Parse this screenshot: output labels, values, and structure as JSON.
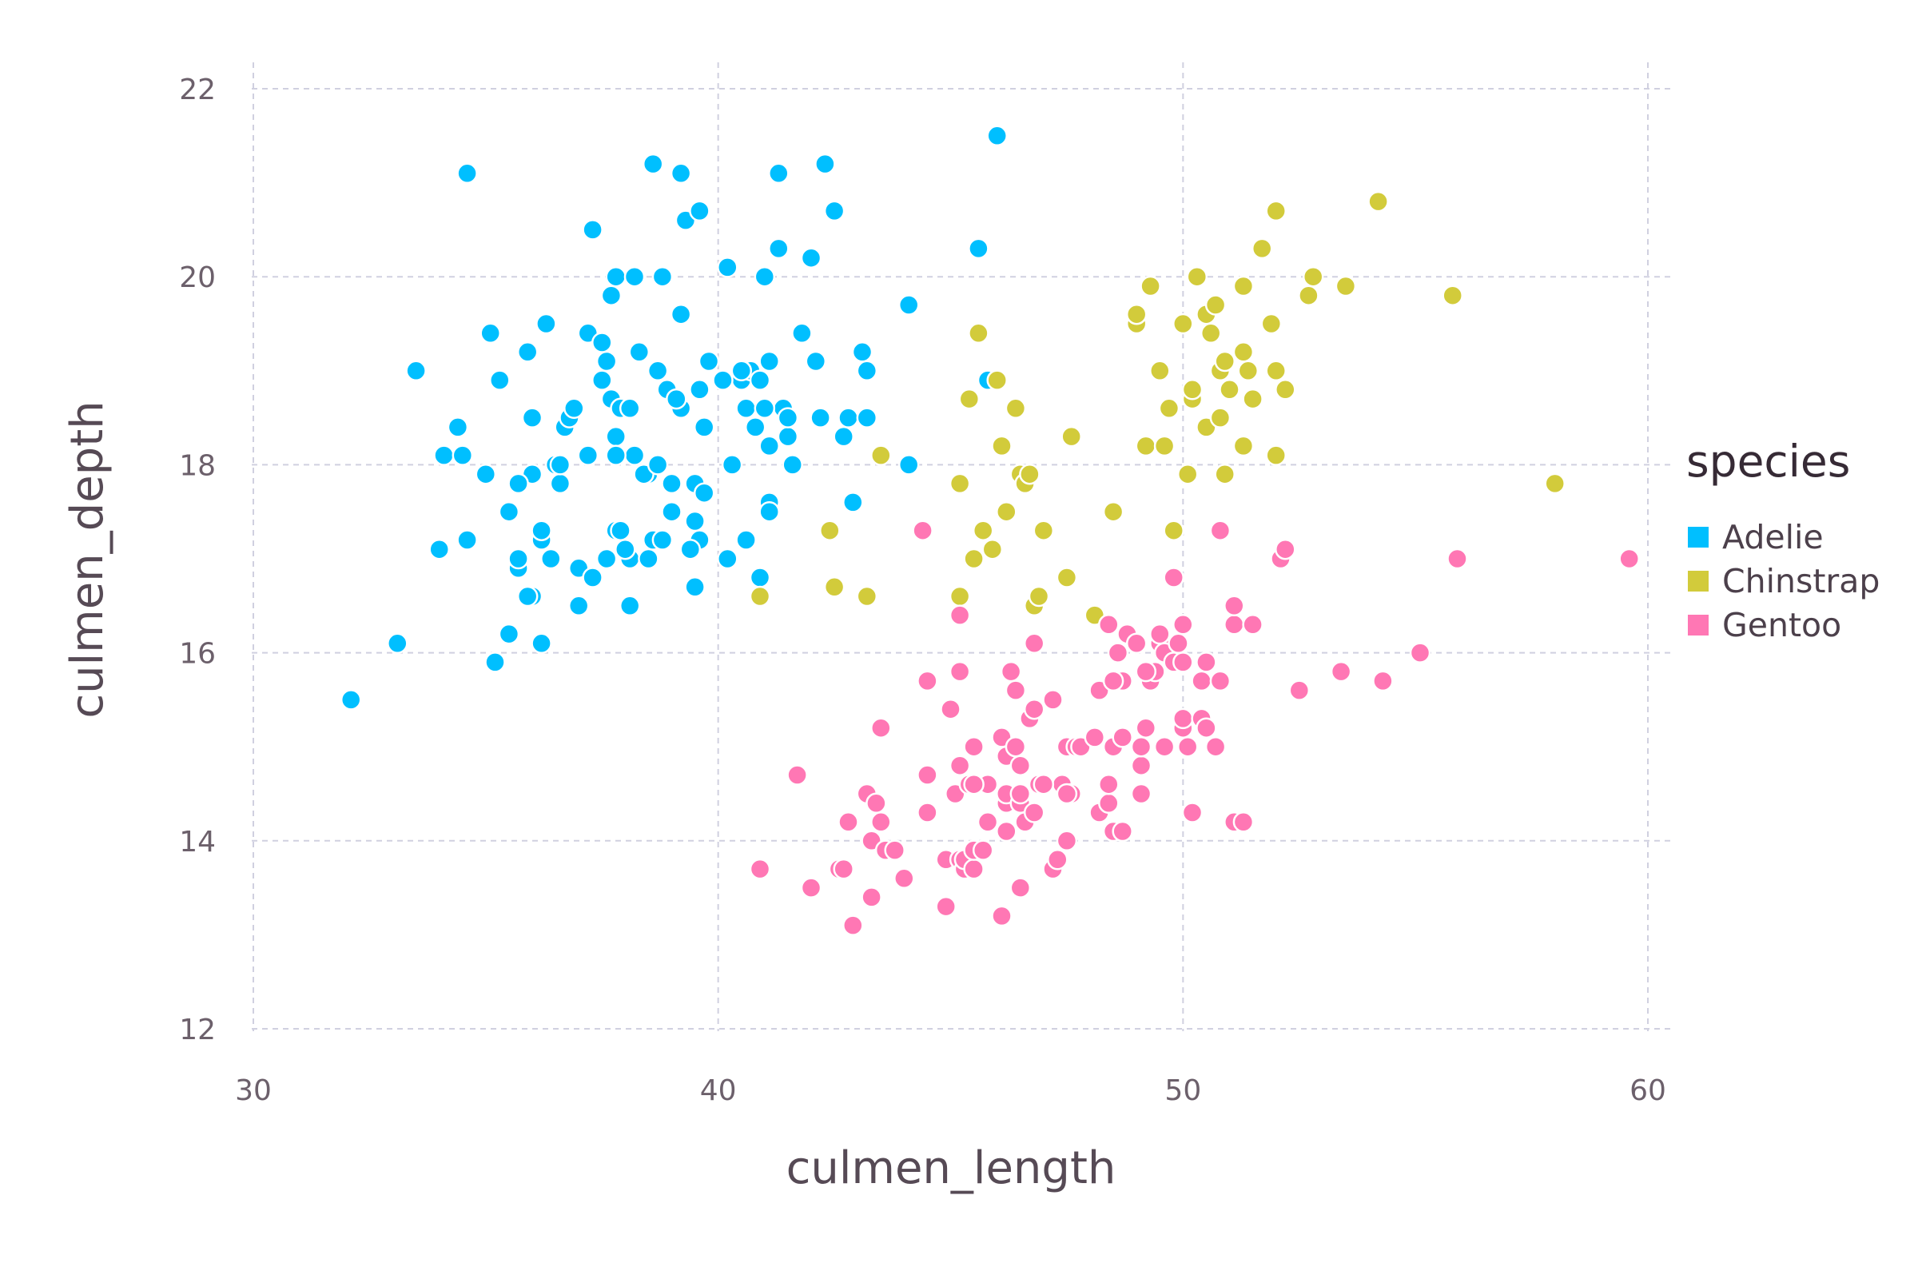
{
  "chart_data": {
    "type": "scatter",
    "title": "",
    "xlabel": "culmen_length",
    "ylabel": "culmen_depth",
    "xlim": [
      29.5,
      60.5
    ],
    "ylim": [
      11.8,
      22.3
    ],
    "xticks": [
      30,
      40,
      50,
      60
    ],
    "yticks": [
      12,
      14,
      16,
      18,
      20,
      22
    ],
    "grid": true,
    "legend": {
      "title": "species",
      "placement": "right"
    },
    "series": [
      {
        "name": "Adelie",
        "color": "#00bfff",
        "points": [
          [
            32.1,
            15.5
          ],
          [
            33.1,
            16.1
          ],
          [
            33.5,
            19.0
          ],
          [
            34.0,
            17.1
          ],
          [
            34.1,
            18.1
          ],
          [
            34.4,
            18.4
          ],
          [
            34.5,
            18.1
          ],
          [
            34.6,
            21.1
          ],
          [
            34.6,
            17.2
          ],
          [
            35.0,
            17.9
          ],
          [
            35.1,
            19.4
          ],
          [
            35.3,
            18.9
          ],
          [
            35.2,
            15.9
          ],
          [
            35.5,
            17.5
          ],
          [
            35.5,
            16.2
          ],
          [
            35.7,
            16.9
          ],
          [
            35.7,
            17.0
          ],
          [
            35.9,
            19.2
          ],
          [
            36.0,
            16.6
          ],
          [
            36.0,
            18.5
          ],
          [
            36.0,
            17.9
          ],
          [
            36.2,
            17.2
          ],
          [
            36.2,
            16.1
          ],
          [
            36.3,
            19.5
          ],
          [
            36.4,
            17.0
          ],
          [
            36.5,
            18.0
          ],
          [
            36.6,
            17.8
          ],
          [
            36.7,
            18.4
          ],
          [
            36.8,
            18.5
          ],
          [
            36.9,
            18.6
          ],
          [
            37.0,
            16.9
          ],
          [
            37.0,
            16.5
          ],
          [
            37.2,
            18.1
          ],
          [
            37.3,
            16.8
          ],
          [
            37.3,
            20.5
          ],
          [
            37.6,
            19.1
          ],
          [
            37.6,
            17.0
          ],
          [
            37.7,
            18.7
          ],
          [
            37.8,
            18.3
          ],
          [
            37.8,
            20.0
          ],
          [
            37.8,
            17.3
          ],
          [
            37.9,
            18.6
          ],
          [
            38.1,
            18.6
          ],
          [
            38.1,
            17.0
          ],
          [
            38.1,
            16.5
          ],
          [
            38.2,
            18.1
          ],
          [
            38.2,
            20.0
          ],
          [
            38.3,
            19.2
          ],
          [
            38.5,
            17.9
          ],
          [
            38.6,
            21.2
          ],
          [
            38.6,
            17.2
          ],
          [
            38.7,
            19.0
          ],
          [
            38.8,
            17.2
          ],
          [
            38.8,
            20.0
          ],
          [
            38.9,
            18.8
          ],
          [
            39.0,
            17.5
          ],
          [
            39.1,
            18.7
          ],
          [
            39.2,
            21.1
          ],
          [
            39.2,
            19.6
          ],
          [
            39.3,
            20.6
          ],
          [
            39.5,
            16.7
          ],
          [
            39.5,
            17.4
          ],
          [
            39.5,
            17.8
          ],
          [
            39.6,
            18.8
          ],
          [
            39.6,
            17.2
          ],
          [
            39.6,
            20.7
          ],
          [
            39.7,
            18.4
          ],
          [
            39.8,
            19.1
          ],
          [
            40.2,
            20.1
          ],
          [
            40.2,
            17.0
          ],
          [
            40.3,
            18.0
          ],
          [
            40.5,
            18.9
          ],
          [
            40.6,
            18.6
          ],
          [
            40.7,
            19.0
          ],
          [
            40.8,
            18.4
          ],
          [
            40.9,
            16.8
          ],
          [
            41.0,
            20.0
          ],
          [
            41.1,
            17.6
          ],
          [
            41.1,
            18.2
          ],
          [
            41.1,
            19.1
          ],
          [
            41.3,
            21.1
          ],
          [
            41.3,
            20.3
          ],
          [
            41.4,
            18.6
          ],
          [
            41.5,
            18.3
          ],
          [
            41.6,
            18.0
          ],
          [
            41.8,
            19.4
          ],
          [
            42.0,
            20.2
          ],
          [
            42.1,
            19.1
          ],
          [
            42.2,
            18.5
          ],
          [
            42.3,
            21.2
          ],
          [
            42.5,
            20.7
          ],
          [
            42.7,
            18.3
          ],
          [
            42.8,
            18.5
          ],
          [
            42.9,
            17.6
          ],
          [
            43.1,
            19.2
          ],
          [
            43.2,
            19.0
          ],
          [
            43.2,
            18.5
          ],
          [
            44.1,
            19.7
          ],
          [
            44.1,
            18.0
          ],
          [
            45.6,
            20.3
          ],
          [
            45.8,
            18.9
          ],
          [
            46.0,
            21.5
          ],
          [
            37.5,
            18.9
          ],
          [
            37.7,
            19.8
          ],
          [
            38.0,
            17.1
          ],
          [
            39.0,
            17.8
          ],
          [
            36.6,
            18.0
          ],
          [
            40.1,
            18.9
          ],
          [
            41.1,
            17.5
          ],
          [
            37.8,
            18.1
          ],
          [
            39.7,
            17.7
          ],
          [
            35.9,
            16.6
          ],
          [
            36.2,
            17.3
          ],
          [
            40.6,
            17.2
          ],
          [
            38.9,
            18.8
          ],
          [
            37.2,
            19.4
          ],
          [
            37.9,
            17.3
          ],
          [
            40.5,
            19.0
          ],
          [
            39.2,
            18.6
          ],
          [
            41.0,
            18.6
          ],
          [
            38.4,
            17.9
          ],
          [
            35.7,
            17.8
          ],
          [
            39.1,
            18.7
          ],
          [
            38.5,
            17.0
          ],
          [
            41.5,
            18.5
          ],
          [
            37.5,
            19.3
          ],
          [
            38.7,
            18.0
          ],
          [
            39.4,
            17.1
          ],
          [
            40.9,
            18.9
          ]
        ]
      },
      {
        "name": "Chinstrap",
        "color": "#d2cb3b",
        "points": [
          [
            40.9,
            16.6
          ],
          [
            42.4,
            17.3
          ],
          [
            42.5,
            16.7
          ],
          [
            43.2,
            16.6
          ],
          [
            43.5,
            18.1
          ],
          [
            45.2,
            17.8
          ],
          [
            45.2,
            16.6
          ],
          [
            45.4,
            18.7
          ],
          [
            45.5,
            17.0
          ],
          [
            45.6,
            19.4
          ],
          [
            45.7,
            17.3
          ],
          [
            45.9,
            17.1
          ],
          [
            46.1,
            18.2
          ],
          [
            46.2,
            17.5
          ],
          [
            46.4,
            18.6
          ],
          [
            46.5,
            17.9
          ],
          [
            46.6,
            17.8
          ],
          [
            46.8,
            16.5
          ],
          [
            46.9,
            16.6
          ],
          [
            47.0,
            17.3
          ],
          [
            47.5,
            16.8
          ],
          [
            47.6,
            18.3
          ],
          [
            48.1,
            16.4
          ],
          [
            48.5,
            17.5
          ],
          [
            49.0,
            19.5
          ],
          [
            49.2,
            18.2
          ],
          [
            49.3,
            19.9
          ],
          [
            49.5,
            19.0
          ],
          [
            49.6,
            18.2
          ],
          [
            49.7,
            18.6
          ],
          [
            49.8,
            17.3
          ],
          [
            50.0,
            19.5
          ],
          [
            50.1,
            17.9
          ],
          [
            50.2,
            18.7
          ],
          [
            50.3,
            20.0
          ],
          [
            50.5,
            18.4
          ],
          [
            50.5,
            19.6
          ],
          [
            50.6,
            19.4
          ],
          [
            50.7,
            19.7
          ],
          [
            50.8,
            18.5
          ],
          [
            50.8,
            19.0
          ],
          [
            50.9,
            17.9
          ],
          [
            51.0,
            18.8
          ],
          [
            51.3,
            18.2
          ],
          [
            51.3,
            19.9
          ],
          [
            51.4,
            19.0
          ],
          [
            51.5,
            18.7
          ],
          [
            51.7,
            20.3
          ],
          [
            51.9,
            19.5
          ],
          [
            52.0,
            18.1
          ],
          [
            52.0,
            20.7
          ],
          [
            52.2,
            18.8
          ],
          [
            52.7,
            19.8
          ],
          [
            52.8,
            20.0
          ],
          [
            53.5,
            19.9
          ],
          [
            54.2,
            20.8
          ],
          [
            55.8,
            19.8
          ],
          [
            58.0,
            17.8
          ],
          [
            49.0,
            19.6
          ],
          [
            50.2,
            18.8
          ],
          [
            51.3,
            19.2
          ],
          [
            52.0,
            19.0
          ],
          [
            46.0,
            18.9
          ],
          [
            46.7,
            17.9
          ],
          [
            45.5,
            17.0
          ],
          [
            50.9,
            19.1
          ]
        ]
      },
      {
        "name": "Gentoo",
        "color": "#ff77b4",
        "points": [
          [
            40.9,
            13.7
          ],
          [
            41.7,
            14.7
          ],
          [
            42.0,
            13.5
          ],
          [
            42.6,
            13.7
          ],
          [
            42.7,
            13.7
          ],
          [
            42.8,
            14.2
          ],
          [
            42.9,
            13.1
          ],
          [
            43.2,
            14.5
          ],
          [
            43.3,
            14.0
          ],
          [
            43.3,
            13.4
          ],
          [
            43.4,
            14.4
          ],
          [
            43.5,
            14.2
          ],
          [
            43.5,
            15.2
          ],
          [
            43.6,
            13.9
          ],
          [
            43.8,
            13.9
          ],
          [
            44.0,
            13.6
          ],
          [
            44.4,
            17.3
          ],
          [
            44.5,
            15.7
          ],
          [
            44.5,
            14.3
          ],
          [
            44.5,
            14.7
          ],
          [
            44.9,
            13.8
          ],
          [
            44.9,
            13.3
          ],
          [
            45.0,
            15.4
          ],
          [
            45.1,
            14.5
          ],
          [
            45.2,
            13.8
          ],
          [
            45.2,
            14.8
          ],
          [
            45.2,
            15.8
          ],
          [
            45.2,
            16.4
          ],
          [
            45.3,
            13.7
          ],
          [
            45.3,
            13.8
          ],
          [
            45.4,
            14.6
          ],
          [
            45.5,
            13.7
          ],
          [
            45.5,
            13.9
          ],
          [
            45.5,
            15.0
          ],
          [
            45.7,
            13.9
          ],
          [
            45.8,
            14.2
          ],
          [
            45.8,
            14.6
          ],
          [
            46.1,
            13.2
          ],
          [
            46.1,
            15.1
          ],
          [
            46.2,
            14.1
          ],
          [
            46.2,
            14.4
          ],
          [
            46.2,
            14.5
          ],
          [
            46.2,
            14.9
          ],
          [
            46.3,
            15.8
          ],
          [
            46.4,
            15.0
          ],
          [
            46.4,
            15.6
          ],
          [
            46.5,
            13.5
          ],
          [
            46.5,
            14.4
          ],
          [
            46.5,
            14.8
          ],
          [
            46.6,
            14.2
          ],
          [
            46.7,
            15.3
          ],
          [
            46.8,
            14.3
          ],
          [
            46.8,
            15.4
          ],
          [
            46.8,
            16.1
          ],
          [
            46.9,
            14.6
          ],
          [
            47.2,
            13.7
          ],
          [
            47.2,
            15.5
          ],
          [
            47.3,
            13.8
          ],
          [
            47.4,
            14.6
          ],
          [
            47.5,
            14.0
          ],
          [
            47.5,
            15.0
          ],
          [
            47.6,
            14.5
          ],
          [
            47.7,
            15.0
          ],
          [
            47.8,
            15.0
          ],
          [
            48.1,
            15.1
          ],
          [
            48.2,
            14.3
          ],
          [
            48.2,
            15.6
          ],
          [
            48.4,
            14.4
          ],
          [
            48.4,
            14.6
          ],
          [
            48.4,
            16.3
          ],
          [
            48.5,
            14.1
          ],
          [
            48.5,
            15.0
          ],
          [
            48.6,
            16.0
          ],
          [
            48.7,
            14.1
          ],
          [
            48.7,
            15.1
          ],
          [
            48.7,
            15.7
          ],
          [
            48.8,
            16.2
          ],
          [
            49.0,
            16.1
          ],
          [
            49.1,
            14.5
          ],
          [
            49.1,
            14.8
          ],
          [
            49.1,
            15.0
          ],
          [
            49.2,
            15.2
          ],
          [
            49.3,
            15.7
          ],
          [
            49.4,
            15.8
          ],
          [
            49.5,
            16.1
          ],
          [
            49.5,
            16.2
          ],
          [
            49.6,
            15.0
          ],
          [
            49.6,
            16.0
          ],
          [
            49.8,
            15.9
          ],
          [
            49.8,
            16.8
          ],
          [
            49.9,
            16.1
          ],
          [
            50.0,
            15.2
          ],
          [
            50.0,
            15.3
          ],
          [
            50.0,
            15.9
          ],
          [
            50.0,
            16.3
          ],
          [
            50.1,
            15.0
          ],
          [
            50.2,
            14.3
          ],
          [
            50.4,
            15.3
          ],
          [
            50.4,
            15.7
          ],
          [
            50.5,
            15.2
          ],
          [
            50.5,
            15.9
          ],
          [
            50.7,
            15.0
          ],
          [
            50.8,
            15.7
          ],
          [
            50.8,
            17.3
          ],
          [
            51.1,
            14.2
          ],
          [
            51.1,
            16.3
          ],
          [
            51.1,
            16.5
          ],
          [
            51.3,
            14.2
          ],
          [
            51.5,
            16.3
          ],
          [
            52.1,
            17.0
          ],
          [
            52.2,
            17.1
          ],
          [
            52.5,
            15.6
          ],
          [
            53.4,
            15.8
          ],
          [
            54.3,
            15.7
          ],
          [
            55.1,
            16.0
          ],
          [
            55.9,
            17.0
          ],
          [
            59.6,
            17.0
          ],
          [
            46.5,
            14.5
          ],
          [
            47.0,
            14.6
          ],
          [
            47.5,
            14.5
          ],
          [
            44.0,
            13.6
          ],
          [
            49.2,
            15.8
          ],
          [
            45.5,
            14.6
          ],
          [
            48.5,
            15.7
          ]
        ]
      }
    ]
  }
}
